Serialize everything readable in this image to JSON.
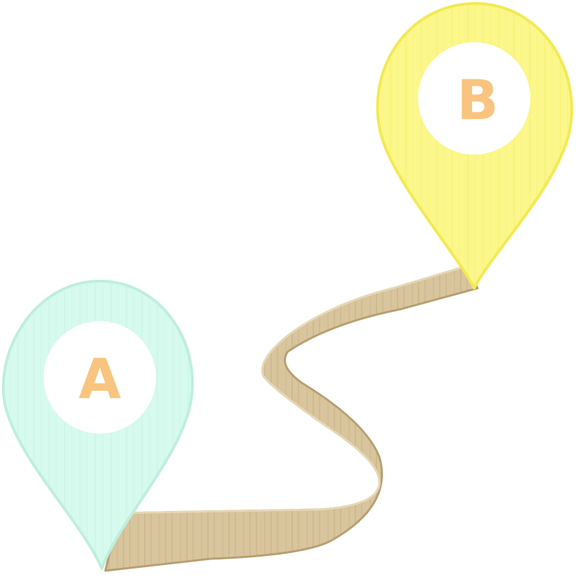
{
  "colors": {
    "background": "#ffffff",
    "path": "#d8c59d",
    "path_dark": "#b89f72",
    "pin_a": "#d6faee",
    "pin_a_edge": "#bfeedd",
    "pin_b": "#fbf78a",
    "pin_b_edge": "#f2ea52",
    "badge": "#ffffff",
    "letter": "#f9c47f"
  },
  "pin_a": {
    "label": "A",
    "icon": "map-pin-icon"
  },
  "pin_b": {
    "label": "B",
    "icon": "map-pin-icon"
  },
  "route": {
    "icon": "winding-path-icon"
  }
}
